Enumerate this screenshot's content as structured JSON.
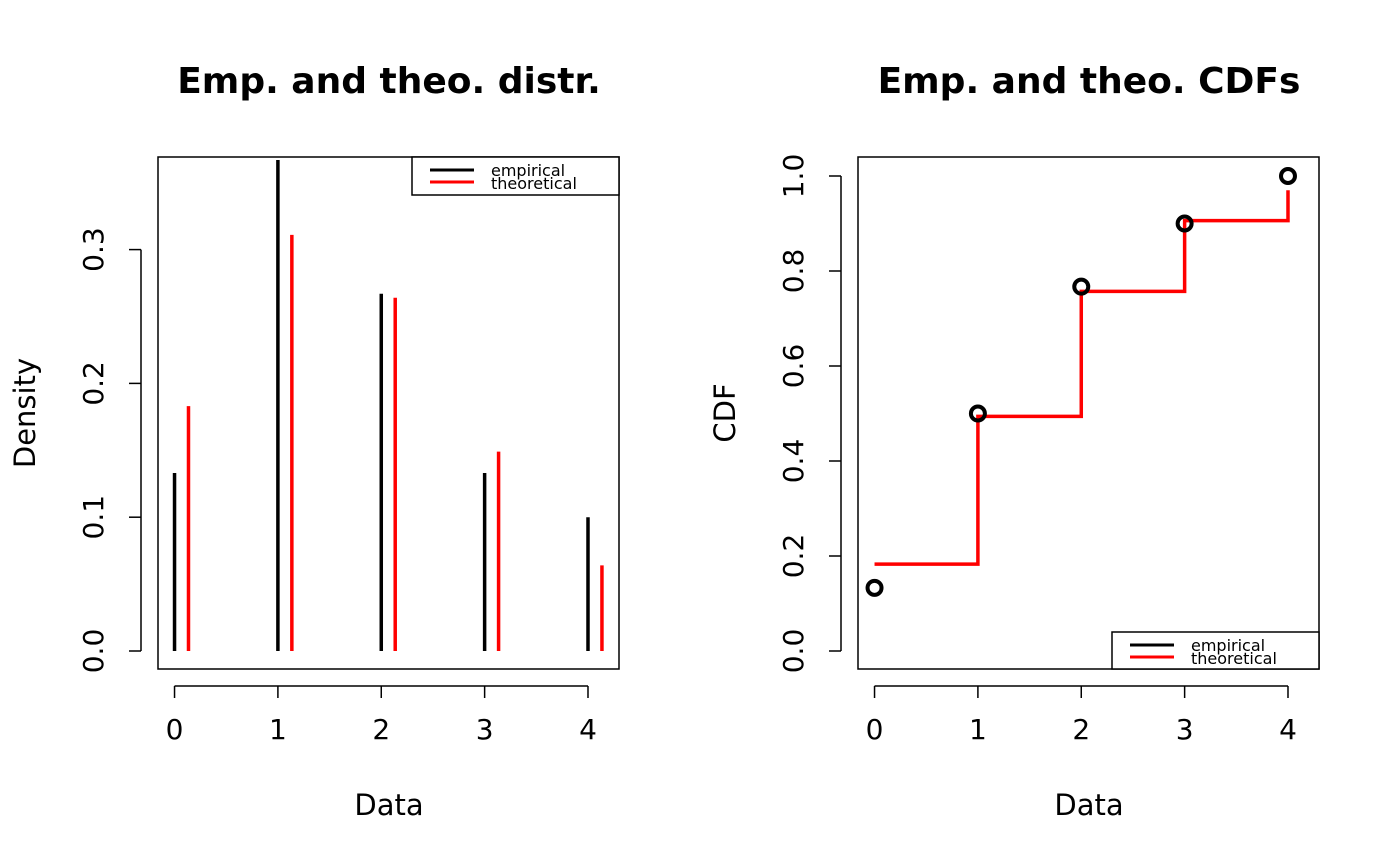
{
  "chart_data": [
    {
      "type": "bar",
      "title": "Emp. and theo. distr.",
      "xlabel": "Data",
      "ylabel": "Density",
      "x": [
        0,
        1,
        2,
        3,
        4
      ],
      "xlim": [
        -0.16,
        4.3
      ],
      "ylim": [
        0,
        0.355
      ],
      "xticks": [
        "0",
        "1",
        "2",
        "3",
        "4"
      ],
      "yticks": [
        "0.0",
        "0.1",
        "0.2",
        "0.3"
      ],
      "series": [
        {
          "name": "empirical",
          "color": "#000000",
          "values": [
            0.133,
            0.367,
            0.267,
            0.133,
            0.1
          ]
        },
        {
          "name": "theoretical",
          "color": "#ff0000",
          "values": [
            0.183,
            0.311,
            0.264,
            0.149,
            0.064
          ]
        }
      ],
      "legend": "top-right",
      "grid": false
    },
    {
      "type": "line",
      "title": "Emp. and theo. CDFs",
      "xlabel": "Data",
      "ylabel": "CDF",
      "x": [
        0,
        1,
        2,
        3,
        4
      ],
      "xlim": [
        -0.16,
        4.3
      ],
      "ylim": [
        0,
        1
      ],
      "xticks": [
        "0",
        "1",
        "2",
        "3",
        "4"
      ],
      "yticks": [
        "0.0",
        "0.2",
        "0.4",
        "0.6",
        "0.8",
        "1.0"
      ],
      "series": [
        {
          "name": "empirical",
          "color": "#000000",
          "style": "points",
          "values": [
            0.133,
            0.5,
            0.767,
            0.9,
            1.0
          ]
        },
        {
          "name": "theoretical",
          "color": "#ff0000",
          "style": "step",
          "values": [
            0.183,
            0.494,
            0.757,
            0.906,
            0.97
          ]
        }
      ],
      "legend": "bottom-right",
      "grid": false
    }
  ]
}
